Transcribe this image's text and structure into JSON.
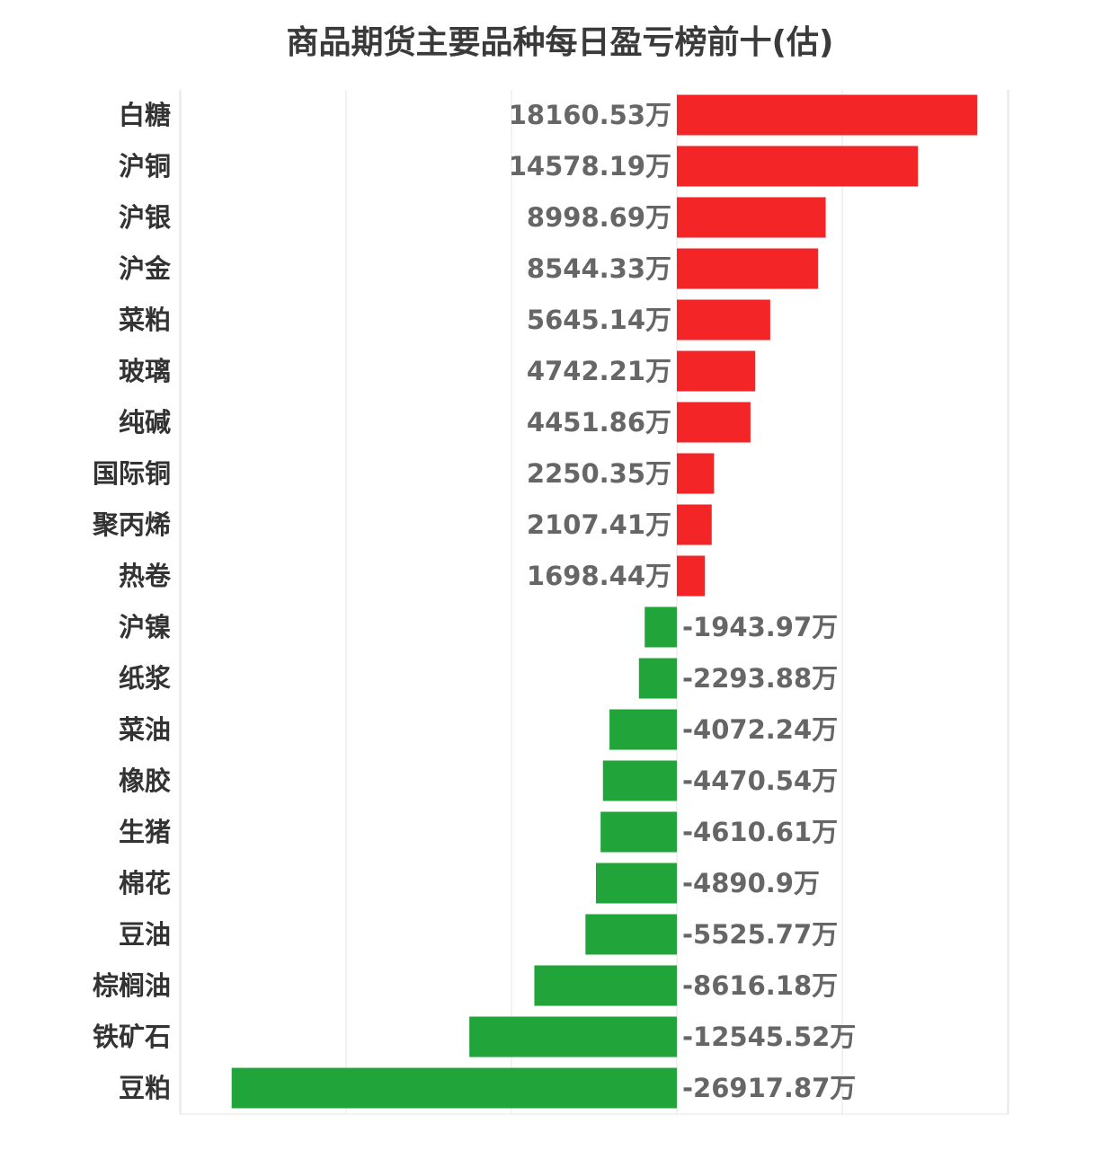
{
  "chart_data": {
    "type": "bar",
    "orientation": "horizontal",
    "title": "商品期货主要品种每日盈亏榜前十(估)",
    "unit": "万",
    "categories": [
      "白糖",
      "沪铜",
      "沪银",
      "沪金",
      "菜粕",
      "玻璃",
      "纯碱",
      "国际铜",
      "聚丙烯",
      "热卷",
      "沪镍",
      "纸浆",
      "菜油",
      "橡胶",
      "生猪",
      "棉花",
      "豆油",
      "棕榈油",
      "铁矿石",
      "豆粕"
    ],
    "values": [
      18160.53,
      14578.19,
      8998.69,
      8544.33,
      5645.14,
      4742.21,
      4451.86,
      2250.35,
      2107.41,
      1698.44,
      -1943.97,
      -2293.88,
      -4072.24,
      -4470.54,
      -4610.61,
      -4890.9,
      -5525.77,
      -8616.18,
      -12545.52,
      -26917.87
    ],
    "value_labels": [
      "18160.53万",
      "14578.19万",
      "8998.69万",
      "8544.33万",
      "5645.14万",
      "4742.21万",
      "4451.86万",
      "2250.35万",
      "2107.41万",
      "1698.44万",
      "-1943.97万",
      "-2293.88万",
      "-4072.24万",
      "-4470.54万",
      "-4610.61万",
      "-4890.9万",
      "-5525.77万",
      "-8616.18万",
      "-12545.52万",
      "-26917.87万"
    ],
    "xlim": [
      -30000,
      20000
    ],
    "grid": true,
    "colors": {
      "positive": "#f42527",
      "negative": "#21a53a",
      "grid": "#e6e6e6"
    }
  }
}
